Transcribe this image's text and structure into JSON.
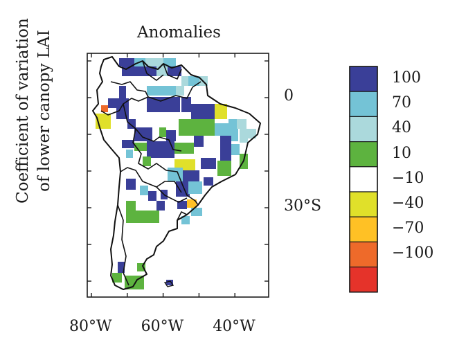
{
  "title": "Anomalies",
  "y_label": [
    "Coefficient of variation",
    "of lower canopy LAI"
  ],
  "lat_ticks": [
    {
      "value": 0,
      "label": "0"
    },
    {
      "value": -30,
      "label": "30°S"
    }
  ],
  "lon_ticks": [
    {
      "value": -80,
      "label": "80°W"
    },
    {
      "value": -60,
      "label": "60°W"
    },
    {
      "value": -40,
      "label": "40°W"
    }
  ],
  "colorbar": {
    "bins": [
      {
        "label": "100",
        "color": "#3a3f98"
      },
      {
        "label": "70",
        "color": "#74c3d6"
      },
      {
        "label": "40",
        "color": "#abd9dc"
      },
      {
        "label": "10",
        "color": "#5db33f"
      },
      {
        "label": "−10",
        "color": "#ffffff"
      },
      {
        "label": "−40",
        "color": "#e0e02a"
      },
      {
        "label": "−70",
        "color": "#ffc125"
      },
      {
        "label": "−100",
        "color": "#ee6a2a"
      },
      {
        "label": "",
        "color": "#e5332a"
      }
    ]
  }
}
